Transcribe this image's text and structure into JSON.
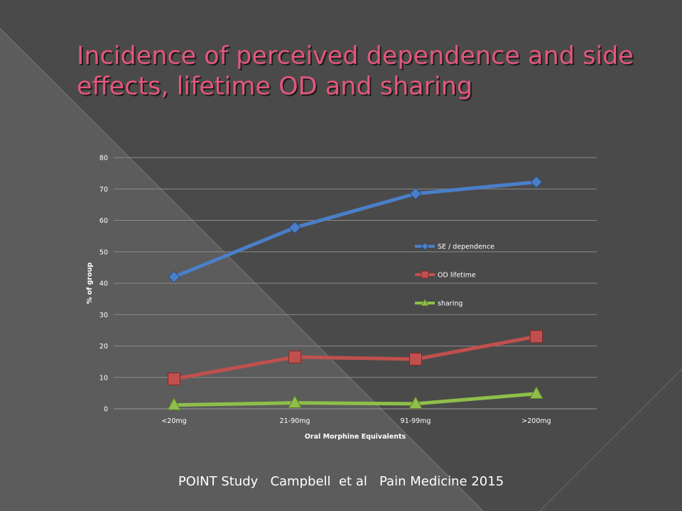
{
  "slide": {
    "title": "Incidence of perceived dependence and side effects, lifetime OD and sharing",
    "footer": "POINT Study   Campbell  et al   Pain Medicine 2015"
  },
  "colors": {
    "background": "#4a4a4a",
    "title": "#e2577d",
    "series": [
      "#4a7fc8",
      "#c0504d",
      "#8fbf4a"
    ]
  },
  "chart_data": {
    "type": "line",
    "title": "",
    "xlabel": "Oral Morphine Equivalents",
    "ylabel": "% of group",
    "categories": [
      "<20mg",
      "21-90mg",
      "91-99mg",
      ">200mg"
    ],
    "ylim": [
      0,
      80
    ],
    "yticks": [
      0,
      10,
      20,
      30,
      40,
      50,
      60,
      70,
      80
    ],
    "grid": true,
    "legend": "right",
    "series": [
      {
        "name": "SE / dependence",
        "marker": "diamond",
        "color": "#4a7fc8",
        "values": [
          42,
          57.7,
          68.5,
          72.2
        ]
      },
      {
        "name": "OD lifetime",
        "marker": "square",
        "color": "#c0504d",
        "values": [
          9.5,
          16.5,
          15.8,
          23
        ]
      },
      {
        "name": "sharing",
        "marker": "triangle",
        "color": "#8fbf4a",
        "values": [
          1.2,
          1.9,
          1.6,
          4.8
        ]
      }
    ]
  }
}
